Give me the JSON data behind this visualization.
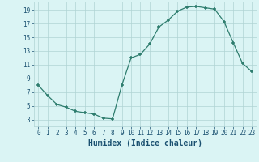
{
  "x": [
    0,
    1,
    2,
    3,
    4,
    5,
    6,
    7,
    8,
    9,
    10,
    11,
    12,
    13,
    14,
    15,
    16,
    17,
    18,
    19,
    20,
    21,
    22,
    23
  ],
  "y": [
    8.0,
    6.5,
    5.2,
    4.8,
    4.2,
    4.0,
    3.8,
    3.2,
    3.1,
    8.0,
    12.0,
    12.5,
    14.0,
    16.5,
    17.5,
    18.8,
    19.4,
    19.5,
    19.3,
    19.1,
    17.3,
    14.2,
    11.2,
    10.0
  ],
  "xlabel": "Humidex (Indice chaleur)",
  "xlim": [
    -0.5,
    23.5
  ],
  "ylim": [
    2.0,
    20.2
  ],
  "yticks": [
    3,
    5,
    7,
    9,
    11,
    13,
    15,
    17,
    19
  ],
  "xticks": [
    0,
    1,
    2,
    3,
    4,
    5,
    6,
    7,
    8,
    9,
    10,
    11,
    12,
    13,
    14,
    15,
    16,
    17,
    18,
    19,
    20,
    21,
    22,
    23
  ],
  "line_color": "#2e7d6e",
  "marker": "+",
  "bg_color": "#daf4f4",
  "grid_color": "#b0d4d4",
  "label_color": "#1a5070",
  "tick_fontsize": 5.5,
  "xlabel_fontsize": 7.0
}
